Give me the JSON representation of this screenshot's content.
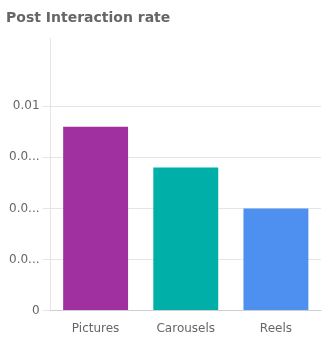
{
  "chart_data": {
    "type": "bar",
    "title": "Post Interaction rate",
    "categories": [
      "Pictures",
      "Carousels",
      "Reels"
    ],
    "values": [
      0.009,
      0.007,
      0.005
    ],
    "colors": [
      "#a030a0",
      "#00b0a8",
      "#4d90f0"
    ],
    "ylim": [
      0,
      0.0133
    ],
    "yticks": [
      0,
      {
        "value": 0.0025,
        "label": "0.0..."
      },
      {
        "value": 0.005,
        "label": "0.0..."
      },
      {
        "value": 0.0075,
        "label": "0.0..."
      },
      0.01
    ],
    "grid": true
  }
}
